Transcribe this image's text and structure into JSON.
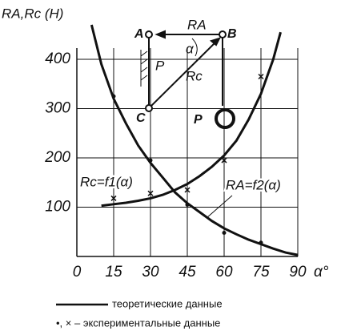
{
  "chart_data": {
    "type": "line",
    "ylabel": "RA,Rc (H)",
    "xlabel": "α°",
    "xlim": [
      0,
      90
    ],
    "xticks": [
      0,
      15,
      30,
      45,
      60,
      75,
      90
    ],
    "ylim": [
      0,
      500
    ],
    "yticks": [
      100,
      200,
      300,
      400
    ],
    "grid": true,
    "series": [
      {
        "name": "Rc=f1(α)",
        "color": "#111",
        "x": [
          6,
          10,
          15,
          20,
          25,
          30,
          35,
          40,
          45,
          50,
          55,
          60,
          65,
          70,
          75,
          80,
          85,
          90
        ],
        "values": [
          470,
          390,
          320,
          270,
          225,
          190,
          160,
          130,
          108,
          90,
          72,
          57,
          45,
          34,
          25,
          16,
          8,
          3
        ]
      },
      {
        "name": "RA=f2(α)",
        "color": "#111",
        "x": [
          10,
          15,
          20,
          25,
          30,
          35,
          40,
          45,
          50,
          55,
          60,
          65,
          70,
          75,
          80,
          83
        ],
        "values": [
          103,
          106,
          109,
          113,
          118,
          125,
          135,
          147,
          163,
          182,
          205,
          235,
          278,
          330,
          400,
          455
        ]
      }
    ],
    "points": [
      {
        "marker": "dot",
        "x": [
          15,
          30,
          45,
          60,
          75
        ],
        "values": [
          325,
          195,
          105,
          48,
          28
        ]
      },
      {
        "marker": "cross",
        "x": [
          15,
          30,
          45,
          60,
          75
        ],
        "values": [
          118,
          128,
          135,
          195,
          365
        ]
      }
    ],
    "legend": [
      "теоретические данные",
      "•, × – экспериментальные данные"
    ],
    "diagram_labels": [
      "A",
      "B",
      "C",
      "P",
      "RA",
      "Rc",
      "P",
      "α"
    ]
  }
}
